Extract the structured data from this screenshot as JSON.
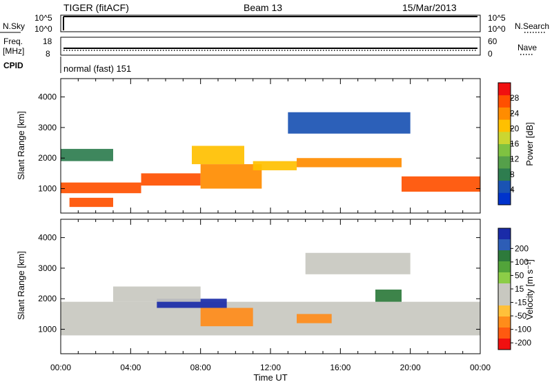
{
  "header": {
    "station": "TIGER (fitACF)",
    "beam": "Beam 13",
    "date": "15/Mar/2013"
  },
  "panels": {
    "nsky": {
      "left_label": "N.Sky",
      "right_label": "N.Search",
      "left_ticks": [
        "10^5",
        "10^0"
      ],
      "right_ticks": [
        "10^5",
        "10^0"
      ]
    },
    "freq": {
      "left_label_1": "Freq.",
      "left_label_2": "[MHz]",
      "right_label": "Nave",
      "left_ticks": [
        "18",
        "8"
      ],
      "right_ticks": [
        "60",
        "0"
      ]
    },
    "cpid": {
      "label": "CPID",
      "value": "normal (fast) 151"
    }
  },
  "colors": {
    "power_scale": [
      "#0033cc",
      "#1a53b3",
      "#2e7d4f",
      "#55a04a",
      "#7fc241",
      "#cbd631",
      "#ffc000",
      "#ff8c00",
      "#ff5000",
      "#f01010"
    ],
    "velocity_scale": [
      "#1a2ba8",
      "#2d5db6",
      "#2d7a3b",
      "#52a43a",
      "#8ccd47",
      "#c8c8c0",
      "#c8c8c0",
      "#ffc03a",
      "#ff8c1a",
      "#ff5a10",
      "#f01010"
    ]
  },
  "chart_data": [
    {
      "type": "heatmap",
      "name": "power",
      "ylabel": "Slant Range [km]",
      "xlabel": "",
      "ylim": [
        200,
        4600
      ],
      "x_ticks": [
        "00:00",
        "04:00",
        "08:00",
        "12:00",
        "16:00",
        "20:00",
        "00:00"
      ],
      "y_ticks": [
        1000,
        2000,
        3000,
        4000
      ],
      "colorbar": {
        "label": "Power [dB]",
        "range": [
          0,
          32
        ],
        "ticks": [
          4,
          8,
          12,
          16,
          20,
          24,
          28
        ]
      },
      "bands": [
        {
          "t0": 0.0,
          "t1": 4.6,
          "r0": 850,
          "r1": 1200,
          "value": 28
        },
        {
          "t0": 4.6,
          "t1": 8.0,
          "r0": 1100,
          "r1": 1500,
          "value": 26
        },
        {
          "t0": 8.0,
          "t1": 11.5,
          "r0": 1000,
          "r1": 1800,
          "value": 24
        },
        {
          "t0": 7.5,
          "t1": 10.5,
          "r0": 1800,
          "r1": 2400,
          "value": 22
        },
        {
          "t0": 11.0,
          "t1": 13.5,
          "r0": 1600,
          "r1": 1900,
          "value": 20
        },
        {
          "t0": 13.5,
          "t1": 19.5,
          "r0": 1700,
          "r1": 2000,
          "value": 24
        },
        {
          "t0": 19.5,
          "t1": 24.0,
          "r0": 900,
          "r1": 1400,
          "value": 26
        },
        {
          "t0": 0.0,
          "t1": 3.0,
          "r0": 1900,
          "r1": 2300,
          "value": 8
        },
        {
          "t0": 13.0,
          "t1": 20.0,
          "r0": 2800,
          "r1": 3500,
          "value": 6
        },
        {
          "t0": 0.5,
          "t1": 3.0,
          "r0": 400,
          "r1": 700,
          "value": 26
        }
      ]
    },
    {
      "type": "heatmap",
      "name": "velocity",
      "ylabel": "Slant Range [km]",
      "xlabel": "Time UT",
      "ylim": [
        200,
        4600
      ],
      "x_ticks": [
        "00:00",
        "04:00",
        "08:00",
        "12:00",
        "16:00",
        "20:00",
        "00:00"
      ],
      "y_ticks": [
        1000,
        2000,
        3000,
        4000
      ],
      "colorbar": {
        "label": "Velocity [m s⁻¹]",
        "ticks": [
          200,
          100,
          50,
          15,
          -15,
          -50,
          -100,
          -200
        ]
      },
      "bands": [
        {
          "t0": 0.0,
          "t1": 24.0,
          "r0": 800,
          "r1": 1900,
          "value": 0
        },
        {
          "t0": 5.5,
          "t1": 9.5,
          "r0": 1700,
          "r1": 2000,
          "value": 180
        },
        {
          "t0": 13.5,
          "t1": 15.5,
          "r0": 1200,
          "r1": 1500,
          "value": -90
        },
        {
          "t0": 8.0,
          "t1": 11.0,
          "r0": 1100,
          "r1": 1700,
          "value": -60
        },
        {
          "t0": 18.0,
          "t1": 19.5,
          "r0": 1900,
          "r1": 2300,
          "value": 60
        },
        {
          "t0": 3.0,
          "t1": 8.0,
          "r0": 1900,
          "r1": 2400,
          "value": 0
        },
        {
          "t0": 14.0,
          "t1": 20.0,
          "r0": 2800,
          "r1": 3500,
          "value": 0
        }
      ]
    }
  ]
}
